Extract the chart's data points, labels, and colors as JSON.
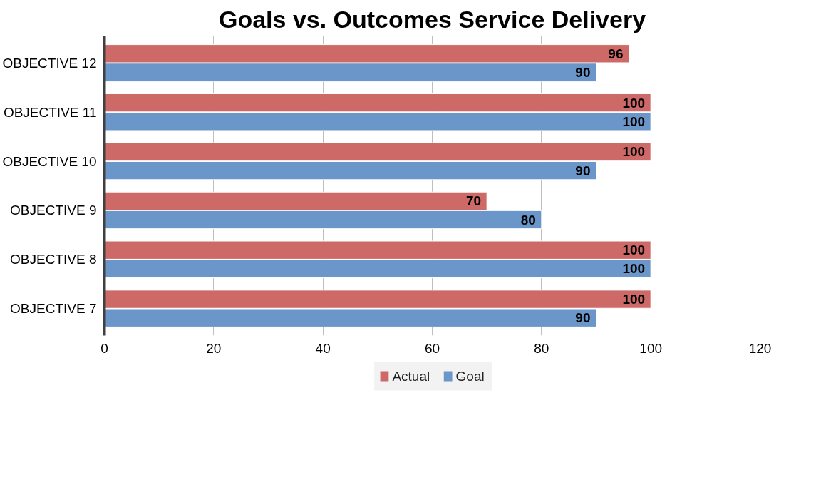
{
  "chart_data": {
    "type": "bar",
    "orientation": "horizontal",
    "title": "Goals vs. Outcomes Service Delivery",
    "categories": [
      "OBJECTIVE 12",
      "OBJECTIVE 11",
      "OBJECTIVE 10",
      "OBJECTIVE 9",
      "OBJECTIVE 8",
      "OBJECTIVE 7"
    ],
    "series": [
      {
        "name": "Actual",
        "color": "#cd6966",
        "values": [
          96,
          100,
          100,
          70,
          100,
          100
        ]
      },
      {
        "name": "Goal",
        "color": "#6a96c9",
        "values": [
          90,
          100,
          90,
          80,
          100,
          90
        ]
      }
    ],
    "xlim": [
      0,
      120
    ],
    "xticks": [
      0,
      20,
      40,
      60,
      80,
      100,
      120
    ],
    "grid": "x",
    "legend": "bottom",
    "data_labels": true
  }
}
